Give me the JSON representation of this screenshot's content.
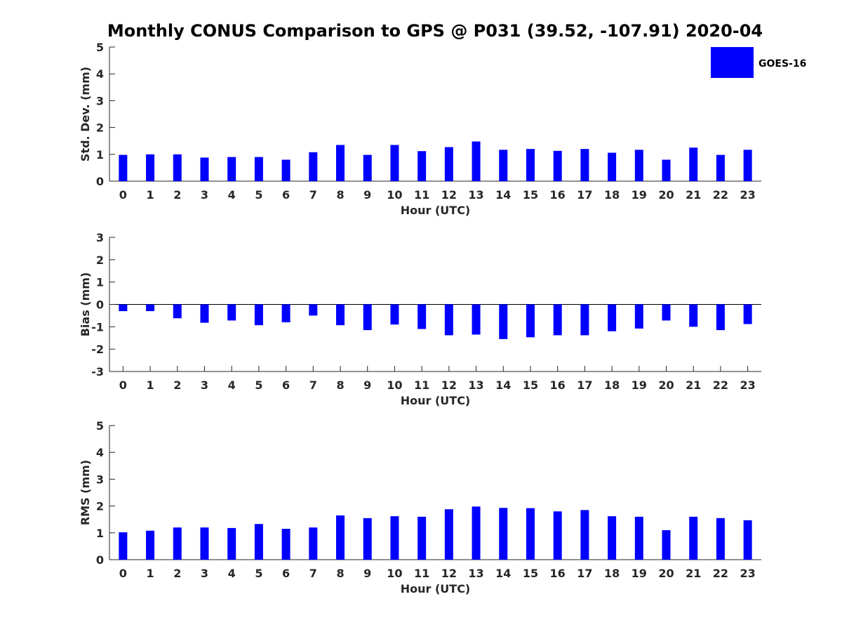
{
  "title": "Monthly CONUS Comparison to GPS @ P031 (39.52, -107.91) 2020-04",
  "legend": {
    "label": "GOES-16",
    "color": "#0000ff",
    "placement": "top-right"
  },
  "chart_data": [
    {
      "type": "bar",
      "xlabel": "Hour (UTC)",
      "ylabel": "Std. Dev. (mm)",
      "ylim": [
        0,
        5
      ],
      "yticks": [
        0,
        1,
        2,
        3,
        4,
        5
      ],
      "categories": [
        "0",
        "1",
        "2",
        "3",
        "4",
        "5",
        "6",
        "7",
        "8",
        "9",
        "10",
        "11",
        "12",
        "13",
        "14",
        "15",
        "16",
        "17",
        "18",
        "19",
        "20",
        "21",
        "22",
        "23"
      ],
      "series": [
        {
          "name": "GOES-16",
          "color": "#0000ff",
          "values": [
            0.98,
            1.0,
            1.0,
            0.88,
            0.9,
            0.9,
            0.8,
            1.08,
            1.35,
            0.98,
            1.35,
            1.12,
            1.27,
            1.48,
            1.17,
            1.2,
            1.13,
            1.2,
            1.06,
            1.17,
            0.8,
            1.25,
            0.98,
            1.17
          ]
        }
      ]
    },
    {
      "type": "bar",
      "xlabel": "Hour (UTC)",
      "ylabel": "Bias (mm)",
      "ylim": [
        -3,
        3
      ],
      "yticks": [
        -3,
        -2,
        -1,
        0,
        1,
        2,
        3
      ],
      "categories": [
        "0",
        "1",
        "2",
        "3",
        "4",
        "5",
        "6",
        "7",
        "8",
        "9",
        "10",
        "11",
        "12",
        "13",
        "14",
        "15",
        "16",
        "17",
        "18",
        "19",
        "20",
        "21",
        "22",
        "23"
      ],
      "series": [
        {
          "name": "GOES-16",
          "color": "#0000ff",
          "values": [
            -0.3,
            -0.3,
            -0.62,
            -0.82,
            -0.72,
            -0.93,
            -0.8,
            -0.5,
            -0.93,
            -1.15,
            -0.9,
            -1.1,
            -1.38,
            -1.35,
            -1.55,
            -1.47,
            -1.38,
            -1.38,
            -1.2,
            -1.08,
            -0.72,
            -1.0,
            -1.15,
            -0.88
          ]
        }
      ]
    },
    {
      "type": "bar",
      "xlabel": "Hour (UTC)",
      "ylabel": "RMS (mm)",
      "ylim": [
        0,
        5
      ],
      "yticks": [
        0,
        1,
        2,
        3,
        4,
        5
      ],
      "categories": [
        "0",
        "1",
        "2",
        "3",
        "4",
        "5",
        "6",
        "7",
        "8",
        "9",
        "10",
        "11",
        "12",
        "13",
        "14",
        "15",
        "16",
        "17",
        "18",
        "19",
        "20",
        "21",
        "22",
        "23"
      ],
      "series": [
        {
          "name": "GOES-16",
          "color": "#0000ff",
          "values": [
            1.02,
            1.08,
            1.2,
            1.2,
            1.18,
            1.33,
            1.15,
            1.2,
            1.65,
            1.55,
            1.62,
            1.6,
            1.88,
            1.98,
            1.93,
            1.92,
            1.8,
            1.85,
            1.62,
            1.6,
            1.1,
            1.6,
            1.55,
            1.47
          ]
        }
      ]
    }
  ]
}
